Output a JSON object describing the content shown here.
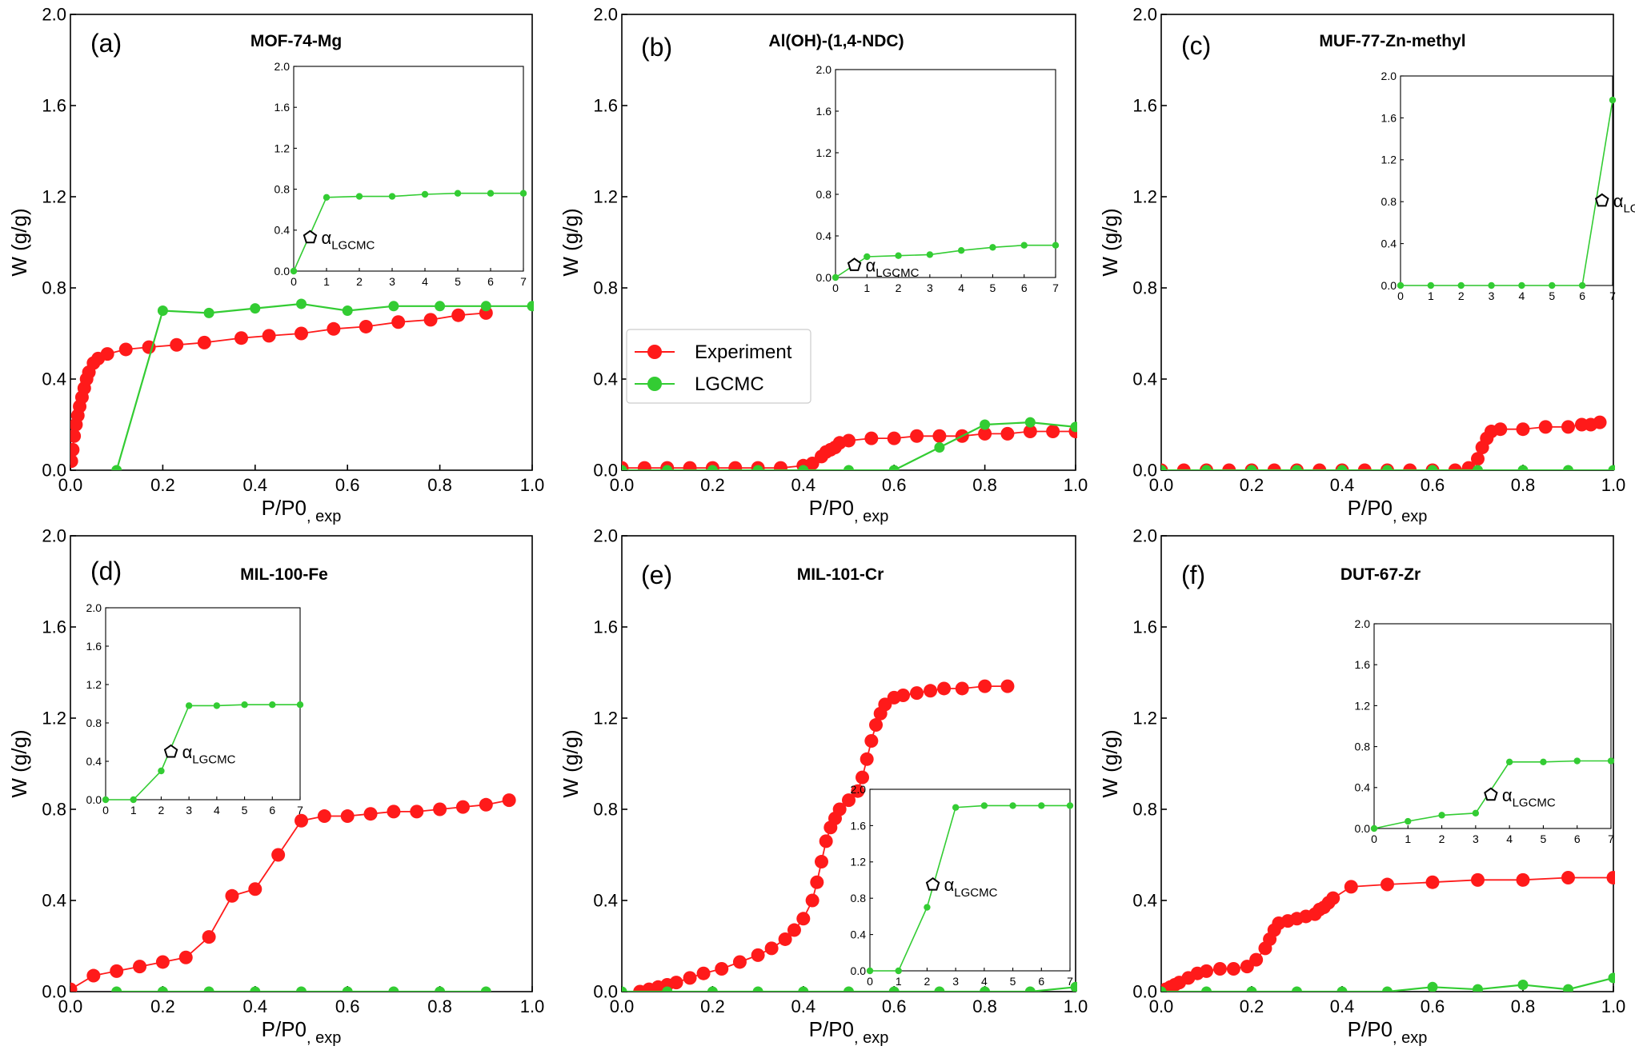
{
  "figure": {
    "colors": {
      "experiment": "#ff1a1a",
      "lgcmc": "#33cc33",
      "axes": "#000000"
    },
    "legend": {
      "experiment": "Experiment",
      "lgcmc": "LGCMC"
    },
    "inset_marker_label": "αLGCMC"
  },
  "chart_data": [
    {
      "type": "line",
      "panel": "(a)",
      "title": "MOF-74-Mg",
      "xlabel": "P/P0, exp",
      "ylabel": "W (g/g)",
      "xlim": [
        0,
        1.0
      ],
      "ylim": [
        0,
        2.0
      ],
      "xticks": [
        "0.0",
        "0.2",
        "0.4",
        "0.6",
        "0.8",
        "1.0"
      ],
      "yticks": [
        "0.0",
        "0.4",
        "0.8",
        "1.2",
        "1.6",
        "2.0"
      ],
      "series": [
        {
          "name": "Experiment",
          "x": [
            0.002,
            0.005,
            0.008,
            0.012,
            0.016,
            0.02,
            0.025,
            0.03,
            0.035,
            0.04,
            0.05,
            0.06,
            0.08,
            0.12,
            0.17,
            0.23,
            0.29,
            0.37,
            0.43,
            0.5,
            0.57,
            0.64,
            0.71,
            0.78,
            0.84,
            0.9
          ],
          "y": [
            0.04,
            0.09,
            0.15,
            0.2,
            0.24,
            0.28,
            0.32,
            0.36,
            0.4,
            0.43,
            0.47,
            0.49,
            0.51,
            0.53,
            0.54,
            0.55,
            0.56,
            0.58,
            0.59,
            0.6,
            0.62,
            0.63,
            0.65,
            0.66,
            0.68,
            0.69
          ]
        },
        {
          "name": "LGCMC",
          "x": [
            0.1,
            0.2,
            0.3,
            0.4,
            0.5,
            0.6,
            0.7,
            0.8,
            0.9,
            1.0
          ],
          "y": [
            0.0,
            0.7,
            0.69,
            0.71,
            0.73,
            0.7,
            0.72,
            0.72,
            0.72,
            0.72
          ]
        }
      ],
      "inset": {
        "xlim": [
          0,
          7
        ],
        "ylim": [
          0,
          2.0
        ],
        "xticks": [
          "0",
          "1",
          "2",
          "3",
          "4",
          "5",
          "6",
          "7"
        ],
        "yticks": [
          "0.0",
          "0.4",
          "0.8",
          "1.2",
          "1.6",
          "2.0"
        ],
        "x": [
          0,
          1,
          2,
          3,
          4,
          5,
          6,
          7
        ],
        "y": [
          0.0,
          0.72,
          0.73,
          0.73,
          0.75,
          0.76,
          0.76,
          0.76
        ],
        "marker": {
          "x": 0.5,
          "y": 0.33,
          "label": "αLGCMC"
        }
      }
    },
    {
      "type": "line",
      "panel": "(b)",
      "title": "Al(OH)-(1,4-NDC)",
      "xlabel": "P/P0, exp",
      "ylabel": "W (g/g)",
      "xlim": [
        0,
        1.0
      ],
      "ylim": [
        0,
        2.0
      ],
      "xticks": [
        "0.0",
        "0.2",
        "0.4",
        "0.6",
        "0.8",
        "1.0"
      ],
      "yticks": [
        "0.0",
        "0.4",
        "0.8",
        "1.2",
        "1.6",
        "2.0"
      ],
      "legend": [
        "Experiment",
        "LGCMC"
      ],
      "series": [
        {
          "name": "Experiment",
          "x": [
            0.0,
            0.05,
            0.1,
            0.15,
            0.2,
            0.25,
            0.3,
            0.35,
            0.4,
            0.42,
            0.44,
            0.45,
            0.46,
            0.47,
            0.48,
            0.5,
            0.55,
            0.6,
            0.65,
            0.7,
            0.75,
            0.8,
            0.85,
            0.9,
            0.95,
            1.0
          ],
          "y": [
            0.01,
            0.01,
            0.01,
            0.01,
            0.01,
            0.01,
            0.01,
            0.01,
            0.02,
            0.03,
            0.06,
            0.08,
            0.09,
            0.1,
            0.12,
            0.13,
            0.14,
            0.14,
            0.15,
            0.15,
            0.15,
            0.16,
            0.16,
            0.17,
            0.17,
            0.17
          ]
        },
        {
          "name": "LGCMC",
          "x": [
            0.0,
            0.1,
            0.2,
            0.3,
            0.4,
            0.5,
            0.6,
            0.7,
            0.8,
            0.9,
            1.0
          ],
          "y": [
            0.0,
            0.0,
            0.0,
            0.0,
            0.0,
            0.0,
            0.0,
            0.1,
            0.2,
            0.21,
            0.19
          ]
        }
      ],
      "inset": {
        "xlim": [
          0,
          7
        ],
        "ylim": [
          0,
          2.0
        ],
        "xticks": [
          "0",
          "1",
          "2",
          "3",
          "4",
          "5",
          "6",
          "7"
        ],
        "yticks": [
          "0.0",
          "0.4",
          "0.8",
          "1.2",
          "1.6",
          "2.0"
        ],
        "x": [
          0,
          1,
          2,
          3,
          4,
          5,
          6,
          7
        ],
        "y": [
          0.0,
          0.2,
          0.21,
          0.22,
          0.26,
          0.29,
          0.31,
          0.31
        ],
        "marker": {
          "x": 0.6,
          "y": 0.12,
          "label": "αLGCMC"
        }
      }
    },
    {
      "type": "line",
      "panel": "(c)",
      "title": "MUF-77-Zn-methyl",
      "xlabel": "P/P0, exp",
      "ylabel": "W (g/g)",
      "xlim": [
        0,
        1.0
      ],
      "ylim": [
        0,
        2.0
      ],
      "xticks": [
        "0.0",
        "0.2",
        "0.4",
        "0.6",
        "0.8",
        "1.0"
      ],
      "yticks": [
        "0.0",
        "0.4",
        "0.8",
        "1.2",
        "1.6",
        "2.0"
      ],
      "series": [
        {
          "name": "Experiment",
          "x": [
            0.0,
            0.05,
            0.1,
            0.15,
            0.2,
            0.25,
            0.3,
            0.35,
            0.4,
            0.45,
            0.5,
            0.55,
            0.6,
            0.65,
            0.68,
            0.7,
            0.71,
            0.72,
            0.73,
            0.75,
            0.8,
            0.85,
            0.9,
            0.93,
            0.95,
            0.97
          ],
          "y": [
            0.0,
            0.0,
            0.0,
            0.0,
            0.0,
            0.0,
            0.0,
            0.0,
            0.0,
            0.0,
            0.0,
            0.0,
            0.0,
            0.0,
            0.01,
            0.05,
            0.1,
            0.14,
            0.17,
            0.18,
            0.18,
            0.19,
            0.19,
            0.2,
            0.2,
            0.21
          ]
        },
        {
          "name": "LGCMC",
          "x": [
            0.0,
            0.1,
            0.2,
            0.3,
            0.4,
            0.5,
            0.6,
            0.7,
            0.8,
            0.9,
            1.0
          ],
          "y": [
            0.0,
            0.0,
            0.0,
            0.0,
            0.0,
            0.0,
            0.0,
            0.0,
            0.0,
            0.0,
            0.0
          ]
        }
      ],
      "inset": {
        "xlim": [
          0,
          7
        ],
        "ylim": [
          0,
          2.0
        ],
        "xticks": [
          "0",
          "1",
          "2",
          "3",
          "4",
          "5",
          "6",
          "7"
        ],
        "yticks": [
          "0.0",
          "0.4",
          "0.8",
          "1.2",
          "1.6",
          "2.0"
        ],
        "x": [
          0,
          1,
          2,
          3,
          4,
          5,
          6,
          7
        ],
        "y": [
          0.0,
          0.0,
          0.0,
          0.0,
          0.0,
          0.0,
          0.0,
          1.77
        ],
        "marker": {
          "x": 6.65,
          "y": 0.81,
          "label": "αLGCMC"
        }
      }
    },
    {
      "type": "line",
      "panel": "(d)",
      "title": "MIL-100-Fe",
      "xlabel": "P/P0, exp",
      "ylabel": "W (g/g)",
      "xlim": [
        0,
        1.0
      ],
      "ylim": [
        0,
        2.0
      ],
      "xticks": [
        "0.0",
        "0.2",
        "0.4",
        "0.6",
        "0.8",
        "1.0"
      ],
      "yticks": [
        "0.0",
        "0.4",
        "0.8",
        "1.2",
        "1.6",
        "2.0"
      ],
      "series": [
        {
          "name": "Experiment",
          "x": [
            0.0,
            0.05,
            0.1,
            0.15,
            0.2,
            0.25,
            0.3,
            0.35,
            0.4,
            0.45,
            0.5,
            0.55,
            0.6,
            0.65,
            0.7,
            0.75,
            0.8,
            0.85,
            0.9,
            0.95
          ],
          "y": [
            0.01,
            0.07,
            0.09,
            0.11,
            0.13,
            0.15,
            0.24,
            0.42,
            0.45,
            0.6,
            0.75,
            0.77,
            0.77,
            0.78,
            0.79,
            0.79,
            0.8,
            0.81,
            0.82,
            0.84
          ]
        },
        {
          "name": "LGCMC",
          "x": [
            0.1,
            0.2,
            0.3,
            0.4,
            0.5,
            0.6,
            0.7,
            0.8,
            0.9
          ],
          "y": [
            0.0,
            0.0,
            0.0,
            0.0,
            0.0,
            0.0,
            0.0,
            0.0,
            0.0
          ]
        }
      ],
      "inset": {
        "xlim": [
          0,
          7
        ],
        "ylim": [
          0,
          2.0
        ],
        "xticks": [
          "0",
          "1",
          "2",
          "3",
          "4",
          "5",
          "6",
          "7"
        ],
        "yticks": [
          "0.0",
          "0.4",
          "0.8",
          "1.2",
          "1.6",
          "2.0"
        ],
        "x": [
          0,
          1,
          2,
          3,
          4,
          5,
          6,
          7
        ],
        "y": [
          0.0,
          0.0,
          0.3,
          0.98,
          0.98,
          0.99,
          0.99,
          0.99
        ],
        "marker": {
          "x": 2.35,
          "y": 0.5,
          "label": "αLGCMC"
        }
      }
    },
    {
      "type": "line",
      "panel": "(e)",
      "title": "MIL-101-Cr",
      "xlabel": "P/P0, exp",
      "ylabel": "W (g/g)",
      "xlim": [
        0,
        1.0
      ],
      "ylim": [
        0,
        2.0
      ],
      "xticks": [
        "0.0",
        "0.2",
        "0.4",
        "0.6",
        "0.8",
        "1.0"
      ],
      "yticks": [
        "0.0",
        "0.4",
        "0.8",
        "1.2",
        "1.6",
        "2.0"
      ],
      "series": [
        {
          "name": "Experiment",
          "x": [
            0.04,
            0.06,
            0.08,
            0.1,
            0.12,
            0.15,
            0.18,
            0.22,
            0.26,
            0.3,
            0.33,
            0.36,
            0.38,
            0.4,
            0.42,
            0.43,
            0.44,
            0.45,
            0.46,
            0.47,
            0.48,
            0.5,
            0.52,
            0.53,
            0.54,
            0.55,
            0.56,
            0.57,
            0.58,
            0.6,
            0.62,
            0.65,
            0.68,
            0.71,
            0.75,
            0.8,
            0.85
          ],
          "y": [
            0.0,
            0.01,
            0.02,
            0.03,
            0.04,
            0.06,
            0.08,
            0.1,
            0.13,
            0.16,
            0.19,
            0.23,
            0.27,
            0.32,
            0.4,
            0.48,
            0.57,
            0.66,
            0.72,
            0.76,
            0.8,
            0.84,
            0.88,
            0.94,
            1.02,
            1.1,
            1.17,
            1.22,
            1.26,
            1.29,
            1.3,
            1.31,
            1.32,
            1.33,
            1.33,
            1.34,
            1.34
          ]
        },
        {
          "name": "LGCMC",
          "x": [
            0.0,
            0.1,
            0.2,
            0.3,
            0.4,
            0.5,
            0.6,
            0.7,
            0.8,
            0.9,
            1.0
          ],
          "y": [
            0.0,
            0.0,
            0.0,
            0.0,
            0.0,
            0.0,
            0.0,
            0.0,
            0.0,
            0.0,
            0.02
          ]
        }
      ],
      "inset": {
        "xlim": [
          0,
          7
        ],
        "ylim": [
          0,
          2.0
        ],
        "xticks": [
          "0",
          "1",
          "2",
          "3",
          "4",
          "5",
          "6",
          "7"
        ],
        "yticks": [
          "0.0",
          "0.4",
          "0.8",
          "1.2",
          "1.6",
          "2.0"
        ],
        "x": [
          0,
          1,
          2,
          3,
          4,
          5,
          6,
          7
        ],
        "y": [
          0.0,
          0.0,
          0.7,
          1.8,
          1.82,
          1.82,
          1.82,
          1.82
        ],
        "marker": {
          "x": 2.2,
          "y": 0.95,
          "label": "αLGCMC"
        }
      }
    },
    {
      "type": "line",
      "panel": "(f)",
      "title": "DUT-67-Zr",
      "xlabel": "P/P0, exp",
      "ylabel": "W (g/g)",
      "xlim": [
        0,
        1.0
      ],
      "ylim": [
        0,
        2.0
      ],
      "xticks": [
        "0.0",
        "0.2",
        "0.4",
        "0.6",
        "0.8",
        "1.0"
      ],
      "yticks": [
        "0.0",
        "0.4",
        "0.8",
        "1.2",
        "1.6",
        "2.0"
      ],
      "series": [
        {
          "name": "Experiment",
          "x": [
            0.0,
            0.01,
            0.02,
            0.03,
            0.04,
            0.06,
            0.08,
            0.1,
            0.13,
            0.16,
            0.19,
            0.21,
            0.23,
            0.24,
            0.25,
            0.26,
            0.28,
            0.3,
            0.32,
            0.34,
            0.35,
            0.36,
            0.37,
            0.38,
            0.42,
            0.5,
            0.6,
            0.7,
            0.8,
            0.9,
            1.0
          ],
          "y": [
            0.0,
            0.01,
            0.02,
            0.03,
            0.04,
            0.06,
            0.08,
            0.09,
            0.1,
            0.1,
            0.11,
            0.14,
            0.19,
            0.23,
            0.27,
            0.3,
            0.31,
            0.32,
            0.33,
            0.34,
            0.36,
            0.37,
            0.39,
            0.41,
            0.46,
            0.47,
            0.48,
            0.49,
            0.49,
            0.5,
            0.5
          ]
        },
        {
          "name": "LGCMC",
          "x": [
            0.0,
            0.1,
            0.2,
            0.3,
            0.4,
            0.5,
            0.6,
            0.7,
            0.8,
            0.9,
            1.0
          ],
          "y": [
            0.0,
            0.0,
            0.0,
            0.0,
            0.0,
            0.0,
            0.02,
            0.01,
            0.03,
            0.01,
            0.06
          ]
        }
      ],
      "inset": {
        "xlim": [
          0,
          7
        ],
        "ylim": [
          0,
          2.0
        ],
        "xticks": [
          "0",
          "1",
          "2",
          "3",
          "4",
          "5",
          "6",
          "7"
        ],
        "yticks": [
          "0.0",
          "0.4",
          "0.8",
          "1.2",
          "1.6",
          "2.0"
        ],
        "x": [
          0,
          1,
          2,
          3,
          4,
          5,
          6,
          7
        ],
        "y": [
          0.0,
          0.07,
          0.13,
          0.15,
          0.65,
          0.65,
          0.66,
          0.66
        ],
        "marker": {
          "x": 3.45,
          "y": 0.33,
          "label": "αLGCMC"
        }
      }
    }
  ]
}
